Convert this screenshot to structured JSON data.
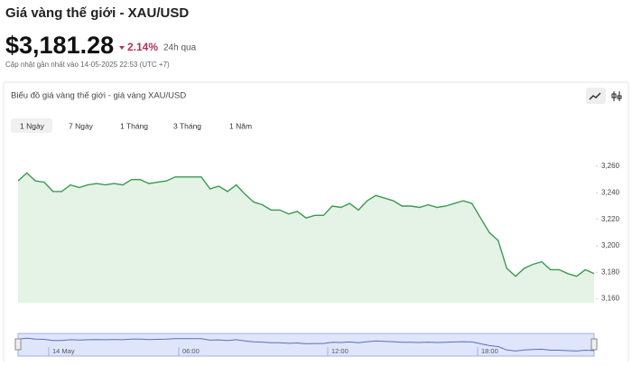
{
  "header": {
    "title": "Giá vàng thế giới - XAU/USD",
    "price": "$3,181.28",
    "change": "2.14%",
    "period": "24h qua",
    "updated": "Cập nhật gần nhất vào 14-05-2025 22:53 (UTC +7)"
  },
  "card": {
    "title": "Biểu đồ giá vàng thế giới - giá vàng XAU/USD",
    "tabs": [
      "1 Ngày",
      "7 Ngày",
      "1 Tháng",
      "3 Tháng",
      "1 Năm"
    ]
  },
  "chart_data": {
    "type": "line",
    "color": "#3a9a52",
    "fill": "#e4f3e6",
    "values": [
      3249,
      3255,
      3249,
      3248,
      3241,
      3241,
      3246,
      3244,
      3246,
      3247,
      3246,
      3247,
      3246,
      3250,
      3250,
      3247,
      3248,
      3249,
      3252,
      3252,
      3252,
      3252,
      3243,
      3245,
      3241,
      3246,
      3239,
      3233,
      3231,
      3227,
      3227,
      3224,
      3226,
      3221,
      3223,
      3223,
      3230,
      3229,
      3232,
      3227,
      3234,
      3238,
      3236,
      3234,
      3230,
      3230,
      3229,
      3231,
      3229,
      3230,
      3232,
      3234,
      3232,
      3221,
      3210,
      3204,
      3183,
      3177,
      3183,
      3186,
      3188,
      3182,
      3182,
      3179,
      3177,
      3182,
      3179
    ],
    "ylim": [
      3157,
      3273
    ],
    "yticks": [
      {
        "value": 3160,
        "label": "3,160"
      },
      {
        "value": 3180,
        "label": "3,180"
      },
      {
        "value": 3200,
        "label": "3,200"
      },
      {
        "value": 3220,
        "label": "3,220"
      },
      {
        "value": 3240,
        "label": "3,240"
      },
      {
        "value": 3260,
        "label": "3,260"
      }
    ],
    "navigator_labels": [
      "14 May",
      "06:00",
      "12:00",
      "18:00"
    ]
  }
}
